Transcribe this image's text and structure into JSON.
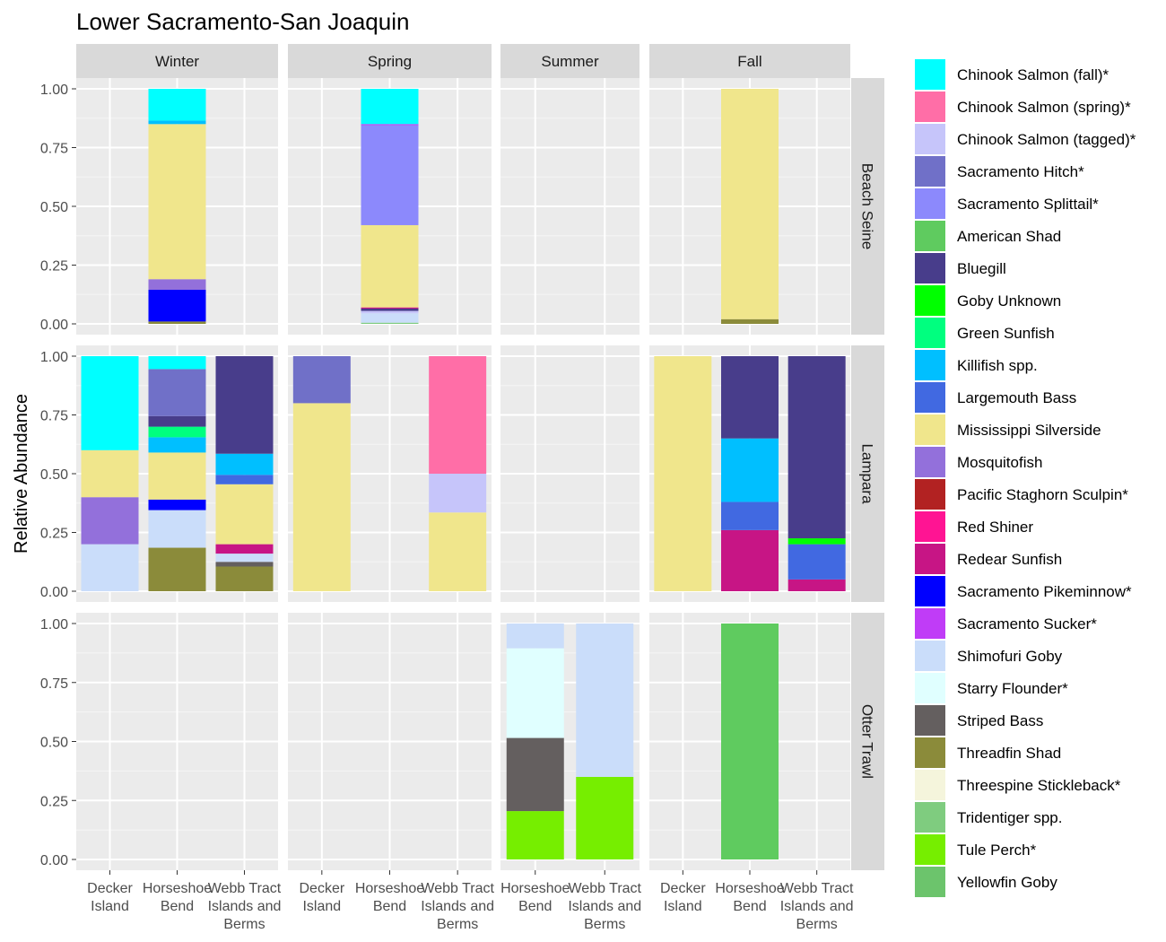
{
  "chart_data": {
    "type": "bar",
    "stacked": true,
    "title": "Lower Sacramento-San Joaquin",
    "ylabel": "Relative Abundance",
    "xlabel": "",
    "ylim": [
      0,
      1
    ],
    "y_ticks": [
      "0.00",
      "0.25",
      "0.50",
      "0.75",
      "1.00"
    ],
    "grid": true,
    "legend_position": "right",
    "col_facets": [
      "Winter",
      "Spring",
      "Summer",
      "Fall"
    ],
    "row_facets": [
      "Beach Seine",
      "Lampara",
      "Otter Trawl"
    ],
    "col_categories": [
      [
        "Decker Island",
        "Horseshoe Bend",
        "Webb Tract Islands and Berms"
      ],
      [
        "Decker Island",
        "Horseshoe Bend",
        "Webb Tract Islands and Berms"
      ],
      [
        "Horseshoe Bend",
        "Webb Tract Islands and Berms"
      ],
      [
        "Decker Island",
        "Horseshoe Bend",
        "Webb Tract Islands and Berms"
      ]
    ],
    "tick_labels": {
      "Decker Island": [
        "Decker",
        "Island"
      ],
      "Horseshoe Bend": [
        "Horseshoe",
        "Bend"
      ],
      "Webb Tract Islands and Berms": [
        "Webb Tract",
        "Islands and",
        "Berms"
      ]
    },
    "species": [
      {
        "name": "Chinook Salmon (fall)*",
        "color": "#00FFFF"
      },
      {
        "name": "Chinook Salmon (spring)*",
        "color": "#FF6EA7"
      },
      {
        "name": "Chinook Salmon (tagged)*",
        "color": "#C6C5FA"
      },
      {
        "name": "Sacramento Hitch*",
        "color": "#7070C8"
      },
      {
        "name": "Sacramento Splittail*",
        "color": "#8C89FC"
      },
      {
        "name": "American Shad",
        "color": "#5FCB5F"
      },
      {
        "name": "Bluegill",
        "color": "#483D8B"
      },
      {
        "name": "Goby Unknown",
        "color": "#00FF00"
      },
      {
        "name": "Green Sunfish",
        "color": "#00FF7F"
      },
      {
        "name": "Killifish spp.",
        "color": "#00BFFF"
      },
      {
        "name": "Largemouth Bass",
        "color": "#4169E1"
      },
      {
        "name": "Mississippi Silverside",
        "color": "#F0E68C"
      },
      {
        "name": "Mosquitofish",
        "color": "#9370DB"
      },
      {
        "name": "Pacific Staghorn Sculpin*",
        "color": "#B22222"
      },
      {
        "name": "Red Shiner",
        "color": "#FF1493"
      },
      {
        "name": "Redear Sunfish",
        "color": "#C71585"
      },
      {
        "name": "Sacramento Pikeminnow*",
        "color": "#0000FF"
      },
      {
        "name": "Sacramento Sucker*",
        "color": "#C03CF7"
      },
      {
        "name": "Shimofuri Goby",
        "color": "#CADDFA"
      },
      {
        "name": "Starry Flounder*",
        "color": "#E0FFFF"
      },
      {
        "name": "Striped Bass",
        "color": "#645F5F"
      },
      {
        "name": "Threadfin Shad",
        "color": "#8B8B3A"
      },
      {
        "name": "Threespine Stickleback*",
        "color": "#F5F5DC"
      },
      {
        "name": "Tridentiger spp.",
        "color": "#7FCC7F"
      },
      {
        "name": "Tule Perch*",
        "color": "#76EE00"
      },
      {
        "name": "Yellowfin Goby",
        "color": "#6CC46C"
      }
    ],
    "bars": [
      {
        "row": 0,
        "col": 0,
        "site": "Horseshoe Bend",
        "segments": [
          {
            "species": "Threadfin Shad",
            "value": 0.01
          },
          {
            "species": "Sacramento Pikeminnow*",
            "value": 0.135
          },
          {
            "species": "Mosquitofish",
            "value": 0.045
          },
          {
            "species": "Mississippi Silverside",
            "value": 0.66
          },
          {
            "species": "Killifish spp.",
            "value": 0.015
          },
          {
            "species": "Chinook Salmon (fall)*",
            "value": 0.135
          }
        ]
      },
      {
        "row": 0,
        "col": 1,
        "site": "Horseshoe Bend",
        "segments": [
          {
            "species": "Tridentiger spp.",
            "value": 0.005
          },
          {
            "species": "Shimofuri Goby",
            "value": 0.04
          },
          {
            "species": "Chinook Salmon (tagged)*",
            "value": 0.01
          },
          {
            "species": "Bluegill",
            "value": 0.01
          },
          {
            "species": "Redear Sunfish",
            "value": 0.005
          },
          {
            "species": "Mississippi Silverside",
            "value": 0.35
          },
          {
            "species": "Sacramento Splittail*",
            "value": 0.425
          },
          {
            "species": "Sacramento Sucker*",
            "value": 0.005
          },
          {
            "species": "Chinook Salmon (fall)*",
            "value": 0.15
          }
        ]
      },
      {
        "row": 0,
        "col": 3,
        "site": "Horseshoe Bend",
        "segments": [
          {
            "species": "Threadfin Shad",
            "value": 0.02
          },
          {
            "species": "Mississippi Silverside",
            "value": 0.98
          }
        ]
      },
      {
        "row": 1,
        "col": 0,
        "site": "Decker Island",
        "segments": [
          {
            "species": "Shimofuri Goby",
            "value": 0.2
          },
          {
            "species": "Mosquitofish",
            "value": 0.2
          },
          {
            "species": "Mississippi Silverside",
            "value": 0.2
          },
          {
            "species": "Chinook Salmon (fall)*",
            "value": 0.4
          }
        ]
      },
      {
        "row": 1,
        "col": 0,
        "site": "Horseshoe Bend",
        "segments": [
          {
            "species": "Threadfin Shad",
            "value": 0.185
          },
          {
            "species": "Shimofuri Goby",
            "value": 0.16
          },
          {
            "species": "Sacramento Pikeminnow*",
            "value": 0.045
          },
          {
            "species": "Mississippi Silverside",
            "value": 0.2
          },
          {
            "species": "Killifish spp.",
            "value": 0.065
          },
          {
            "species": "Green Sunfish",
            "value": 0.045
          },
          {
            "species": "Bluegill",
            "value": 0.045
          },
          {
            "species": "Sacramento Hitch*",
            "value": 0.2
          },
          {
            "species": "Chinook Salmon (fall)*",
            "value": 0.055
          }
        ]
      },
      {
        "row": 1,
        "col": 0,
        "site": "Webb Tract Islands and Berms",
        "segments": [
          {
            "species": "Threadfin Shad",
            "value": 0.105
          },
          {
            "species": "Striped Bass",
            "value": 0.02
          },
          {
            "species": "Shimofuri Goby",
            "value": 0.035
          },
          {
            "species": "Redear Sunfish",
            "value": 0.04
          },
          {
            "species": "Mississippi Silverside",
            "value": 0.255
          },
          {
            "species": "Largemouth Bass",
            "value": 0.04
          },
          {
            "species": "Killifish spp.",
            "value": 0.09
          },
          {
            "species": "Bluegill",
            "value": 0.415
          }
        ]
      },
      {
        "row": 1,
        "col": 1,
        "site": "Decker Island",
        "segments": [
          {
            "species": "Mississippi Silverside",
            "value": 0.8
          },
          {
            "species": "Sacramento Hitch*",
            "value": 0.2
          }
        ]
      },
      {
        "row": 1,
        "col": 1,
        "site": "Webb Tract Islands and Berms",
        "segments": [
          {
            "species": "Mississippi Silverside",
            "value": 0.335
          },
          {
            "species": "Chinook Salmon (tagged)*",
            "value": 0.165
          },
          {
            "species": "Chinook Salmon (spring)*",
            "value": 0.5
          }
        ]
      },
      {
        "row": 1,
        "col": 3,
        "site": "Decker Island",
        "segments": [
          {
            "species": "Mississippi Silverside",
            "value": 1.0
          }
        ]
      },
      {
        "row": 1,
        "col": 3,
        "site": "Horseshoe Bend",
        "segments": [
          {
            "species": "Redear Sunfish",
            "value": 0.26
          },
          {
            "species": "Largemouth Bass",
            "value": 0.12
          },
          {
            "species": "Killifish spp.",
            "value": 0.27
          },
          {
            "species": "Bluegill",
            "value": 0.35
          }
        ]
      },
      {
        "row": 1,
        "col": 3,
        "site": "Webb Tract Islands and Berms",
        "segments": [
          {
            "species": "Redear Sunfish",
            "value": 0.05
          },
          {
            "species": "Largemouth Bass",
            "value": 0.15
          },
          {
            "species": "Goby Unknown",
            "value": 0.025
          },
          {
            "species": "Bluegill",
            "value": 0.775
          }
        ]
      },
      {
        "row": 2,
        "col": 2,
        "site": "Horseshoe Bend",
        "segments": [
          {
            "species": "Tule Perch*",
            "value": 0.205
          },
          {
            "species": "Striped Bass",
            "value": 0.31
          },
          {
            "species": "Starry Flounder*",
            "value": 0.38
          },
          {
            "species": "Shimofuri Goby",
            "value": 0.105
          }
        ]
      },
      {
        "row": 2,
        "col": 2,
        "site": "Webb Tract Islands and Berms",
        "segments": [
          {
            "species": "Tule Perch*",
            "value": 0.35
          },
          {
            "species": "Shimofuri Goby",
            "value": 0.65
          }
        ]
      },
      {
        "row": 2,
        "col": 3,
        "site": "Horseshoe Bend",
        "segments": [
          {
            "species": "American Shad",
            "value": 1.0
          }
        ]
      }
    ]
  }
}
